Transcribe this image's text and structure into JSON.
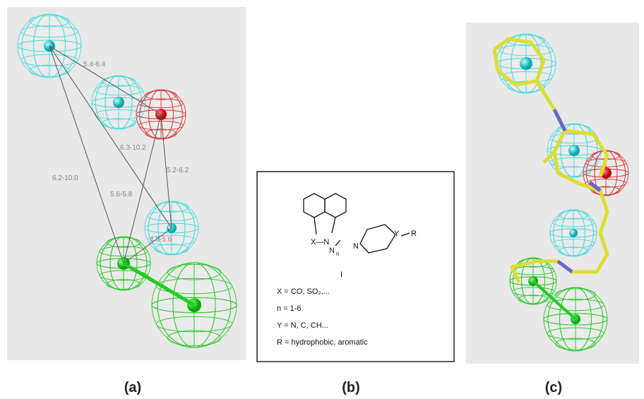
{
  "panel_a": {
    "label": "(a)",
    "distances": [
      "5.4-6.4",
      "6.3-10.2",
      "6.2-10.0",
      "5.6-5.8",
      "5.2-6.2",
      "4.8-5.6"
    ]
  },
  "panel_b": {
    "label": "(b)",
    "structure": {
      "x_n": "X—N",
      "n_chain": "N",
      "n_sub": "n",
      "n_ring": "N",
      "y": "Y",
      "r": "R",
      "compound": "I"
    },
    "definitions": [
      "X = CO, SO₂,...",
      "n = 1-6",
      "Y = N, C, CH...",
      "R = hydrophobic, aromatic"
    ]
  },
  "panel_c": {
    "label": "(c)"
  }
}
